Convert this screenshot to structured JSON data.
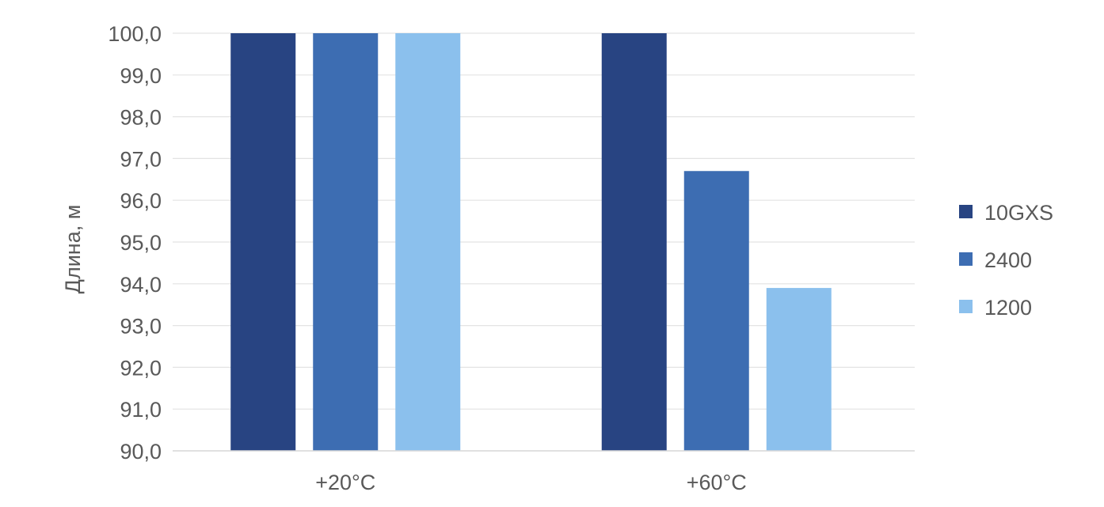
{
  "chart_data": {
    "type": "bar",
    "title": "",
    "xlabel": "",
    "ylabel": "Длина, м",
    "ylim": [
      90,
      100
    ],
    "ytick_step": 1,
    "ytick_labels": [
      "90,0",
      "91,0",
      "92,0",
      "93,0",
      "94,0",
      "95,0",
      "96,0",
      "97,0",
      "98,0",
      "99,0",
      "100,0"
    ],
    "categories": [
      "+20°C",
      "+60°C"
    ],
    "series": [
      {
        "name": "10GXS",
        "color": "#284482",
        "values": [
          100.0,
          100.0
        ]
      },
      {
        "name": "2400",
        "color": "#3d6db2",
        "values": [
          100.0,
          96.7
        ]
      },
      {
        "name": "1200",
        "color": "#8bc0ed",
        "values": [
          100.0,
          93.9
        ]
      }
    ],
    "grid": true,
    "gridline_color": "#e3e3e3",
    "legend_position": "right"
  }
}
